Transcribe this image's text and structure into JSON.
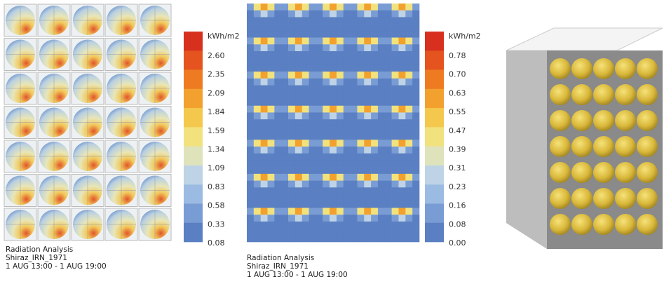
{
  "panels": [
    {
      "legend": {
        "unit": "kWh/m2",
        "labels": [
          "2.60",
          "2.35",
          "2.09",
          "1.84",
          "1.59",
          "1.34",
          "1.09",
          "0.83",
          "0.58",
          "0.33",
          "0.08"
        ]
      },
      "caption": [
        "Radiation Analysis",
        "Shiraz_IRN_1971",
        "1 AUG 13:00 - 1 AUG 19:00"
      ]
    },
    {
      "legend": {
        "unit": "kWh/m2",
        "labels": [
          "0.78",
          "0.70",
          "0.63",
          "0.55",
          "0.47",
          "0.39",
          "0.31",
          "0.23",
          "0.16",
          "0.08",
          "0.00"
        ]
      },
      "caption": [
        "Radiation Analysis",
        "Shiraz_IRN_1971",
        "1 AUG 13:00 - 1 AUG 19:00"
      ]
    }
  ]
}
